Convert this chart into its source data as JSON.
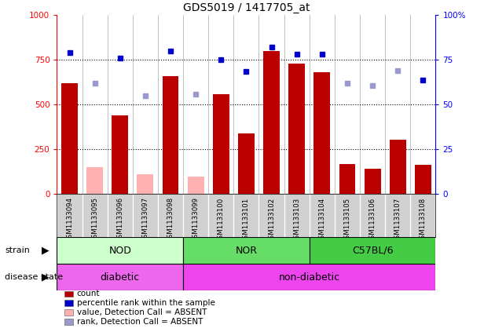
{
  "title": "GDS5019 / 1417705_at",
  "samples": [
    "GSM1133094",
    "GSM1133095",
    "GSM1133096",
    "GSM1133097",
    "GSM1133098",
    "GSM1133099",
    "GSM1133100",
    "GSM1133101",
    "GSM1133102",
    "GSM1133103",
    "GSM1133104",
    "GSM1133105",
    "GSM1133106",
    "GSM1133107",
    "GSM1133108"
  ],
  "counts": [
    620,
    null,
    440,
    null,
    660,
    null,
    560,
    340,
    800,
    730,
    680,
    170,
    140,
    305,
    165
  ],
  "absent_counts": [
    null,
    150,
    null,
    110,
    null,
    100,
    null,
    null,
    null,
    null,
    null,
    null,
    null,
    null,
    null
  ],
  "ranks_pct": [
    79,
    null,
    76,
    null,
    80,
    null,
    75,
    68.5,
    82,
    78,
    78,
    null,
    null,
    null,
    63.5
  ],
  "absent_ranks_pct": [
    null,
    62,
    null,
    55,
    null,
    56,
    null,
    null,
    null,
    null,
    null,
    62,
    60.5,
    69,
    null
  ],
  "bar_color": "#bb0000",
  "absent_bar_color": "#ffb0b0",
  "dot_color": "#0000cc",
  "absent_dot_color": "#9999cc",
  "left_ylim": [
    0,
    1000
  ],
  "right_ylim": [
    0,
    100
  ],
  "left_yticks": [
    0,
    250,
    500,
    750,
    1000
  ],
  "right_ytick_labels": [
    "0",
    "25",
    "50",
    "75",
    "100%"
  ],
  "hgrid_vals": [
    250,
    500,
    750
  ],
  "strain_groups": [
    {
      "label": "NOD",
      "start": 0,
      "end": 4,
      "color": "#ccffcc"
    },
    {
      "label": "NOR",
      "start": 5,
      "end": 9,
      "color": "#66dd66"
    },
    {
      "label": "C57BL/6",
      "start": 10,
      "end": 14,
      "color": "#44cc44"
    }
  ],
  "disease_groups": [
    {
      "label": "diabetic",
      "start": 0,
      "end": 4,
      "color": "#ee66ee"
    },
    {
      "label": "non-diabetic",
      "start": 5,
      "end": 14,
      "color": "#ee44ee"
    }
  ],
  "legend_items": [
    {
      "label": "count",
      "color": "#bb0000"
    },
    {
      "label": "percentile rank within the sample",
      "color": "#0000cc"
    },
    {
      "label": "value, Detection Call = ABSENT",
      "color": "#ffb0b0"
    },
    {
      "label": "rank, Detection Call = ABSENT",
      "color": "#9999cc"
    }
  ]
}
